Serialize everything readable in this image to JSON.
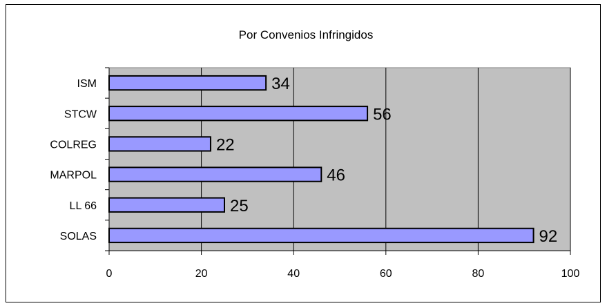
{
  "chart_data": {
    "type": "bar",
    "orientation": "horizontal",
    "title": "Por Convenios Infringidos",
    "categories": [
      "ISM",
      "STCW",
      "COLREG",
      "MARPOL",
      "LL 66",
      "SOLAS"
    ],
    "values": [
      34,
      56,
      22,
      46,
      25,
      92
    ],
    "xlim": [
      0,
      100
    ],
    "x_ticks": [
      0,
      20,
      40,
      60,
      80,
      100
    ],
    "grid": true,
    "legend": "none",
    "colors": {
      "bar_fill": "#9999ff",
      "bar_stroke": "#000000",
      "plot_background": "#c0c0c0",
      "gridline": "#000000"
    }
  }
}
